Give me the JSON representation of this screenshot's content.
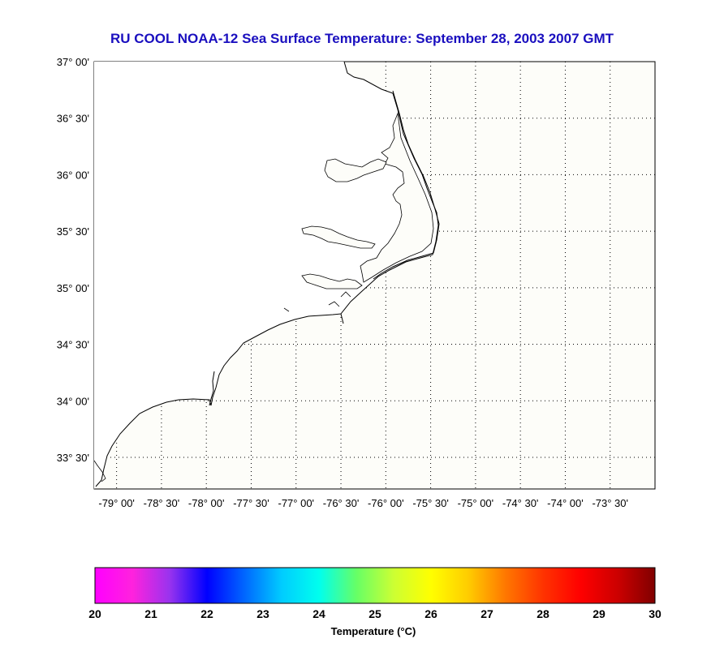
{
  "figure": {
    "title": "RU COOL  NOAA-12  Sea Surface Temperature:  September 28, 2003 2007 GMT"
  },
  "map": {
    "lat_ticks": [
      "37° 00'",
      "36° 30'",
      "36° 00'",
      "35° 30'",
      "35° 00'",
      "34° 30'",
      "34° 00'",
      "33° 30'"
    ],
    "lon_ticks": [
      "-79° 00'",
      "-78° 30'",
      "-78° 00'",
      "-77° 30'",
      "-77° 00'",
      "-76° 30'",
      "-76° 00'",
      "-75° 30'",
      "-75° 00'",
      "-74° 30'",
      "-74° 00'",
      "-73° 30'"
    ],
    "lat_range": [
      33.22,
      37.0
    ],
    "lon_range": [
      -79.25,
      -73.0
    ],
    "grid": true,
    "land_color": "#ffffff",
    "ocean_color": "#fdfdf9",
    "coast_color": "#000000"
  },
  "colorbar": {
    "title": "Temperature (°C)",
    "range": [
      20,
      30
    ],
    "tick_labels": [
      "20",
      "21",
      "22",
      "23",
      "24",
      "25",
      "26",
      "27",
      "28",
      "29",
      "30"
    ],
    "colors": [
      "#ff00ff",
      "#ff22dd",
      "#9933ee",
      "#0000ff",
      "#0066ff",
      "#00ccff",
      "#00ffee",
      "#66ff66",
      "#ccff33",
      "#ffff00",
      "#ffcc00",
      "#ff7700",
      "#ff3300",
      "#ff0000",
      "#cc0000",
      "#800000"
    ]
  }
}
